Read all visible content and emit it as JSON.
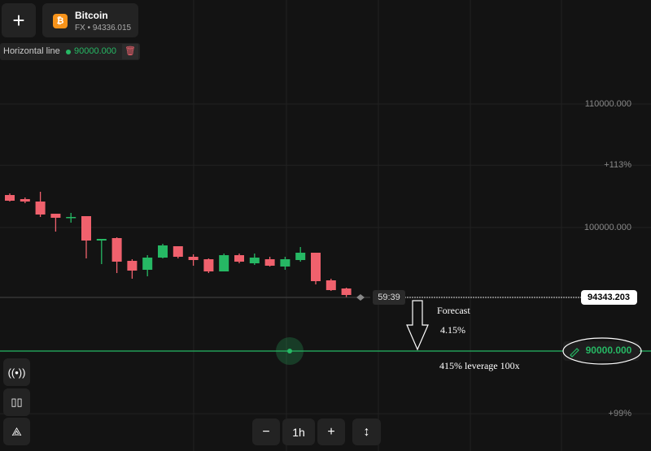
{
  "header": {
    "asset": "Bitcoin",
    "subtitle": "FX • 94336.015"
  },
  "toolbar": {
    "tool": "Horizontal line",
    "level": "90000.000"
  },
  "timeframe": "1h",
  "timer": "59:39",
  "chart_data": {
    "type": "candlestick",
    "open": [
      102632,
      102303,
      102105,
      101118,
      100789,
      100921,
      98947,
      99145,
      97303,
      96579,
      97566,
      98487,
      97632,
      97434,
      96447,
      97763,
      97105,
      97434,
      96842,
      97368,
      97961,
      95724,
      95066
    ],
    "high": [
      102763,
      102434,
      102895,
      101118,
      101184,
      100921,
      99079,
      99211,
      97434,
      97763,
      98684,
      98487,
      97829,
      97500,
      97895,
      97895,
      97895,
      97632,
      97632,
      98421,
      97961,
      95855,
      95132
    ],
    "low": [
      102105,
      101974,
      100855,
      99671,
      100395,
      97500,
      97039,
      96316,
      95855,
      96053,
      97500,
      97500,
      96908,
      96316,
      96447,
      97105,
      96974,
      96842,
      96579,
      97237,
      95395,
      94868,
      94342
    ],
    "close": [
      102171,
      102105,
      101053,
      100789,
      100855,
      98947,
      99079,
      97237,
      96513,
      97566,
      98553,
      97632,
      97368,
      96447,
      97763,
      97237,
      97566,
      96908,
      97434,
      97961,
      95658,
      94934,
      94539
    ],
    "up_color": "#26b864",
    "down_color": "#f0616d",
    "ylim": [
      81908,
      118421
    ],
    "yticks": [
      {
        "value": 110000,
        "label": "110000.000"
      },
      {
        "value": 100000,
        "label": "100000.000"
      }
    ],
    "y2lim": [
      96.9,
      122.3
    ],
    "y2ticks": [
      {
        "value": 113,
        "label": "+113%"
      },
      {
        "value": 99,
        "label": "+99%"
      }
    ],
    "current_price": 94343.203,
    "hline": {
      "value": 90000,
      "label": "90000.000"
    },
    "hline_color": "#26b864",
    "annotations": [
      "Forecast",
      "4.15%",
      "415% leverage 100x"
    ]
  }
}
